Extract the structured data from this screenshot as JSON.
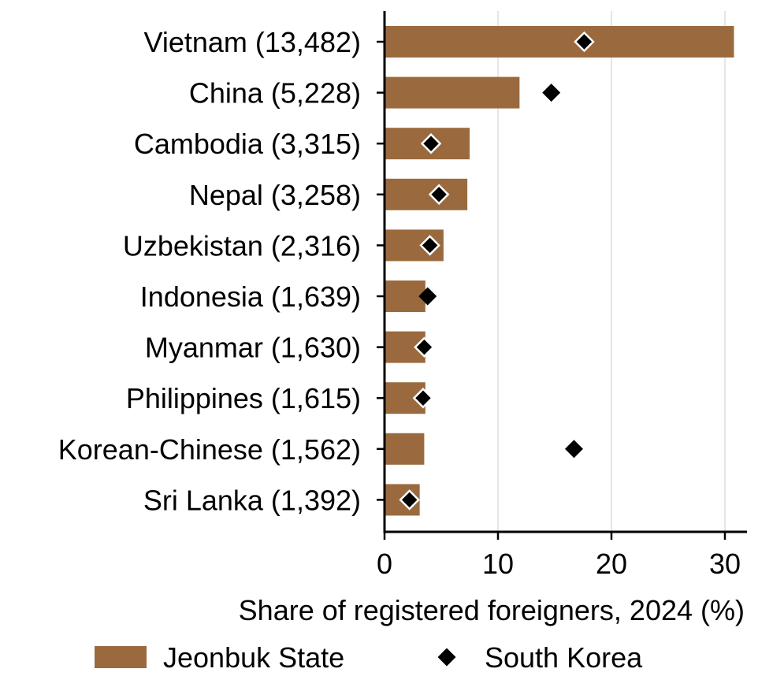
{
  "chart_data": {
    "type": "bar",
    "orientation": "horizontal",
    "xlabel": "Share of registered foreigners, 2024 (%)",
    "ylabel": "",
    "xlim": [
      0,
      31.5
    ],
    "xticks": [
      0,
      10,
      20,
      30
    ],
    "grid": "vertical",
    "legend_position": "bottom",
    "categories": [
      "Vietnam (13,482)",
      "China (5,228)",
      "Cambodia (3,315)",
      "Nepal (3,258)",
      "Uzbekistan (2,316)",
      "Indonesia (1,639)",
      "Myanmar (1,630)",
      "Philippines (1,615)",
      "Korean-Chinese (1,562)",
      "Sri Lanka (1,392)"
    ],
    "series": [
      {
        "name": "Jeonbuk State",
        "mark": "bar",
        "color": "#9a6a3e",
        "values": [
          30.8,
          11.9,
          7.5,
          7.3,
          5.2,
          3.6,
          3.6,
          3.6,
          3.5,
          3.1
        ]
      },
      {
        "name": "South Korea",
        "mark": "diamond",
        "color": "#000000",
        "values": [
          17.6,
          14.7,
          4.1,
          4.8,
          4.0,
          3.8,
          3.5,
          3.4,
          16.7,
          2.2
        ]
      }
    ]
  }
}
